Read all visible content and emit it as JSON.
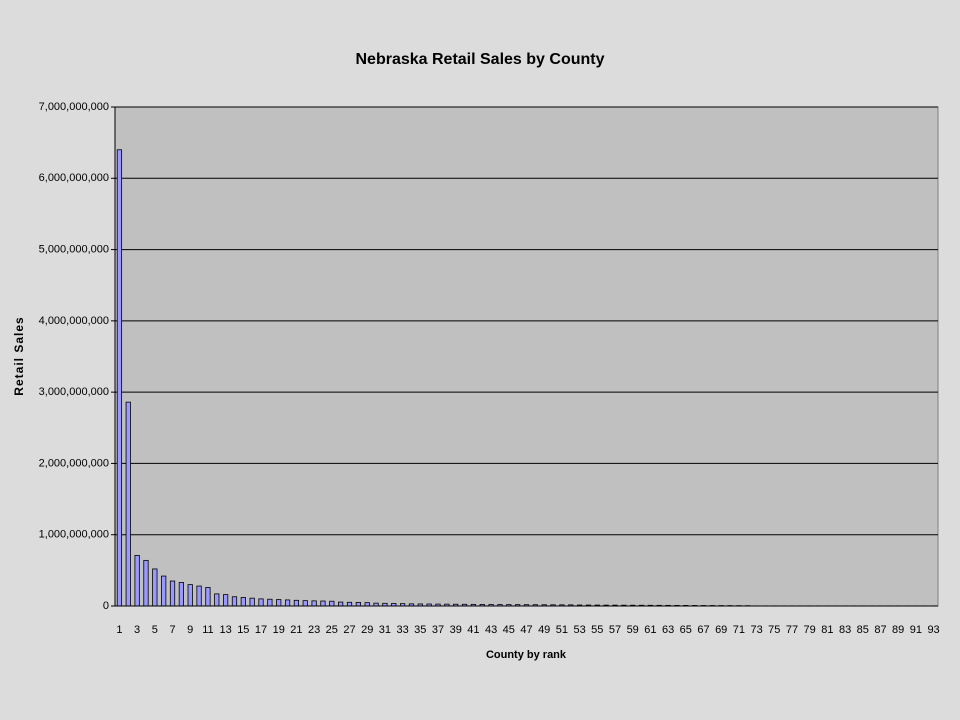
{
  "chart_data": {
    "type": "bar",
    "title": "Nebraska Retail Sales by County",
    "x_label": "County by rank",
    "y_label": "Retail Sales",
    "categories": [
      "1",
      null,
      "3",
      null,
      "5",
      null,
      "7",
      null,
      "9",
      null,
      "11",
      null,
      "13",
      null,
      "15",
      null,
      "17",
      null,
      "19",
      null,
      "21",
      null,
      "23",
      null,
      "25",
      null,
      "27",
      null,
      "29",
      null,
      "31",
      null,
      "33",
      null,
      "35",
      null,
      "37",
      null,
      "39",
      null,
      "41",
      null,
      "43",
      null,
      "45",
      null,
      "47",
      null,
      "49",
      null,
      "51",
      null,
      "53",
      null,
      "55",
      null,
      "57",
      null,
      "59",
      null,
      "61",
      null,
      "63",
      null,
      "65",
      null,
      "67",
      null,
      "69",
      null,
      "71",
      null,
      "73",
      null,
      "75",
      null,
      "77",
      null,
      "79",
      null,
      "81",
      null,
      "83",
      null,
      "85",
      null,
      "87",
      null,
      "89",
      null,
      "91",
      null,
      "93"
    ],
    "values": [
      6400000000,
      2860000000,
      710000000,
      640000000,
      520000000,
      420000000,
      350000000,
      330000000,
      300000000,
      280000000,
      260000000,
      170000000,
      160000000,
      130000000,
      120000000,
      110000000,
      100000000,
      95000000,
      90000000,
      85000000,
      80000000,
      75000000,
      72000000,
      70000000,
      67000000,
      55000000,
      52000000,
      50000000,
      47000000,
      40000000,
      38000000,
      36000000,
      33000000,
      30000000,
      29000000,
      28000000,
      27000000,
      26000000,
      25000000,
      24000000,
      23000000,
      22000000,
      21000000,
      20000000,
      19500000,
      19000000,
      18500000,
      18000000,
      17500000,
      17000000,
      16500000,
      16000000,
      14000000,
      13500000,
      13000000,
      12500000,
      12000000,
      11500000,
      11000000,
      10500000,
      10000000,
      9500000,
      9000000,
      8500000,
      8000000,
      7500000,
      7000000,
      6500000,
      6000000,
      5500000,
      5000000,
      4500000,
      2000000,
      2000000,
      2000000,
      2000000,
      2000000,
      2000000,
      2000000,
      2000000,
      2000000,
      2000000,
      2000000,
      2000000,
      2000000,
      2000000,
      2000000,
      2000000,
      2000000,
      2000000,
      2000000,
      2000000,
      2000000
    ],
    "color": "#9999ff",
    "ylim": [
      0,
      7000000000
    ],
    "yticks": [
      0,
      {
        "value": 1000000000,
        "label": "1,000,000,000"
      },
      {
        "value": 2000000000,
        "label": "2,000,000,000"
      },
      {
        "value": 3000000000,
        "label": "3,000,000,000"
      },
      {
        "value": 4000000000,
        "label": "4,000,000,000"
      },
      {
        "value": 5000000000,
        "label": "5,000,000,000"
      },
      {
        "value": 6000000000,
        "label": "6,000,000,000"
      },
      {
        "value": 7000000000,
        "label": "7,000,000,000"
      }
    ],
    "grid": true
  }
}
